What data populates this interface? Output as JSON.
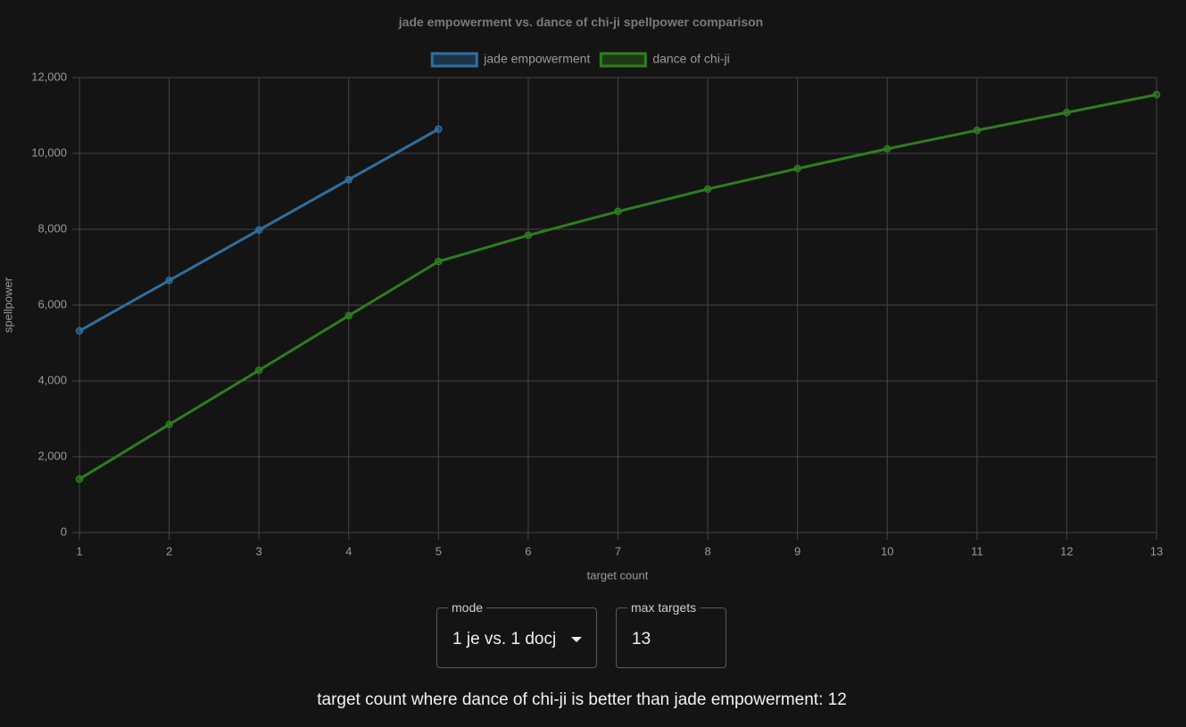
{
  "chart_data": {
    "type": "line",
    "title": "jade empowerment vs. dance of chi-ji spellpower comparison",
    "x_label": "target count",
    "y_label": "spellpower",
    "x": [
      1,
      2,
      3,
      4,
      5,
      6,
      7,
      8,
      9,
      10,
      11,
      12,
      13
    ],
    "series": [
      {
        "name": "jade empowerment",
        "color": "#2f6fa0",
        "values": [
          5320,
          6650,
          7980,
          9310,
          10640,
          null,
          null,
          null,
          null,
          null,
          null,
          null,
          null
        ]
      },
      {
        "name": "dance of chi-ji",
        "color": "#2e7d1f",
        "values": [
          1410,
          2850,
          4280,
          5720,
          7150,
          7840,
          8470,
          9060,
          9600,
          10120,
          10610,
          11080,
          11550
        ]
      }
    ],
    "xlim": [
      1,
      13
    ],
    "xticks": [
      1,
      2,
      3,
      4,
      5,
      6,
      7,
      8,
      9,
      10,
      11,
      12,
      13
    ],
    "ylim": [
      0,
      12000
    ],
    "yticks": [
      0,
      {
        "value": 2000,
        "label": "2,000"
      },
      {
        "value": 4000,
        "label": "4,000"
      },
      {
        "value": 6000,
        "label": "6,000"
      },
      {
        "value": 8000,
        "label": "8,000"
      },
      {
        "value": 10000,
        "label": "10,000"
      },
      {
        "value": 12000,
        "label": "12,000"
      }
    ],
    "grid": true,
    "legend": "top"
  },
  "controls": {
    "mode": {
      "label": "mode",
      "value": "1 je vs. 1 docj"
    },
    "max_targets": {
      "label": "max targets",
      "value": "13"
    }
  },
  "result": "target count where dance of chi-ji is better than jade empowerment: 12"
}
